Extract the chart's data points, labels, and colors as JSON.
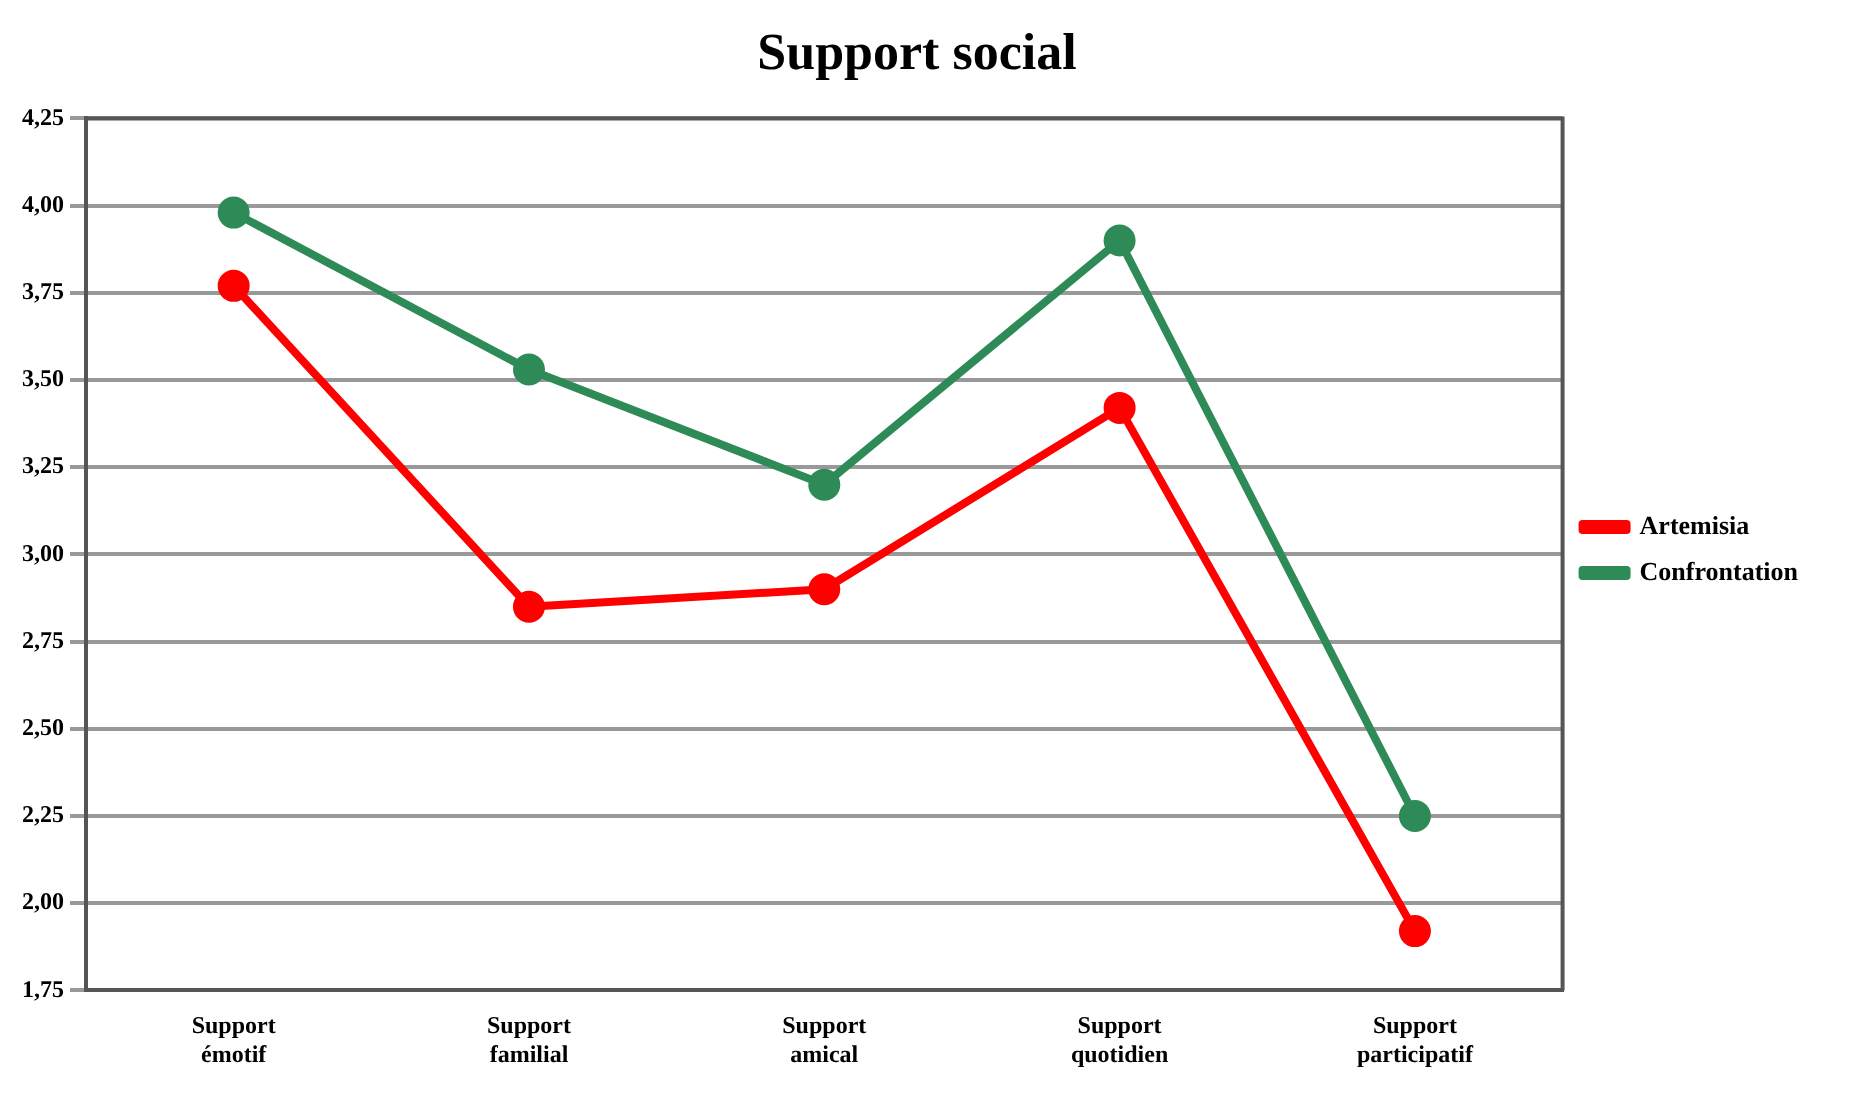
{
  "chart_data": {
    "type": "line",
    "title": "Support social",
    "categories": [
      "Support émotif",
      "Support familial",
      "Support amical",
      "Support quotidien",
      "Support participatif"
    ],
    "series": [
      {
        "name": "Artemisia",
        "color": "#ff0000",
        "values": [
          3.77,
          2.85,
          2.9,
          3.42,
          1.92
        ]
      },
      {
        "name": "Confrontation",
        "color": "#2e8b57",
        "values": [
          3.98,
          3.53,
          3.2,
          3.9,
          2.25
        ]
      }
    ],
    "ylim": [
      1.75,
      4.25
    ],
    "yticks": [
      {
        "value": 1.75,
        "label": "1,75"
      },
      {
        "value": 2,
        "label": "2,00"
      },
      {
        "value": 2.25,
        "label": "2,25"
      },
      {
        "value": 2.5,
        "label": "2,50"
      },
      {
        "value": 2.75,
        "label": "2,75"
      },
      {
        "value": 3,
        "label": "3,00"
      },
      {
        "value": 3.25,
        "label": "3,25"
      },
      {
        "value": 3.5,
        "label": "3,50"
      },
      {
        "value": 3.75,
        "label": "3,75"
      },
      {
        "value": 4,
        "label": "4,00"
      },
      {
        "value": 4.25,
        "label": "4,25"
      }
    ],
    "grid": "y",
    "legend": "right",
    "marker": "circle",
    "line_style": "solid"
  }
}
